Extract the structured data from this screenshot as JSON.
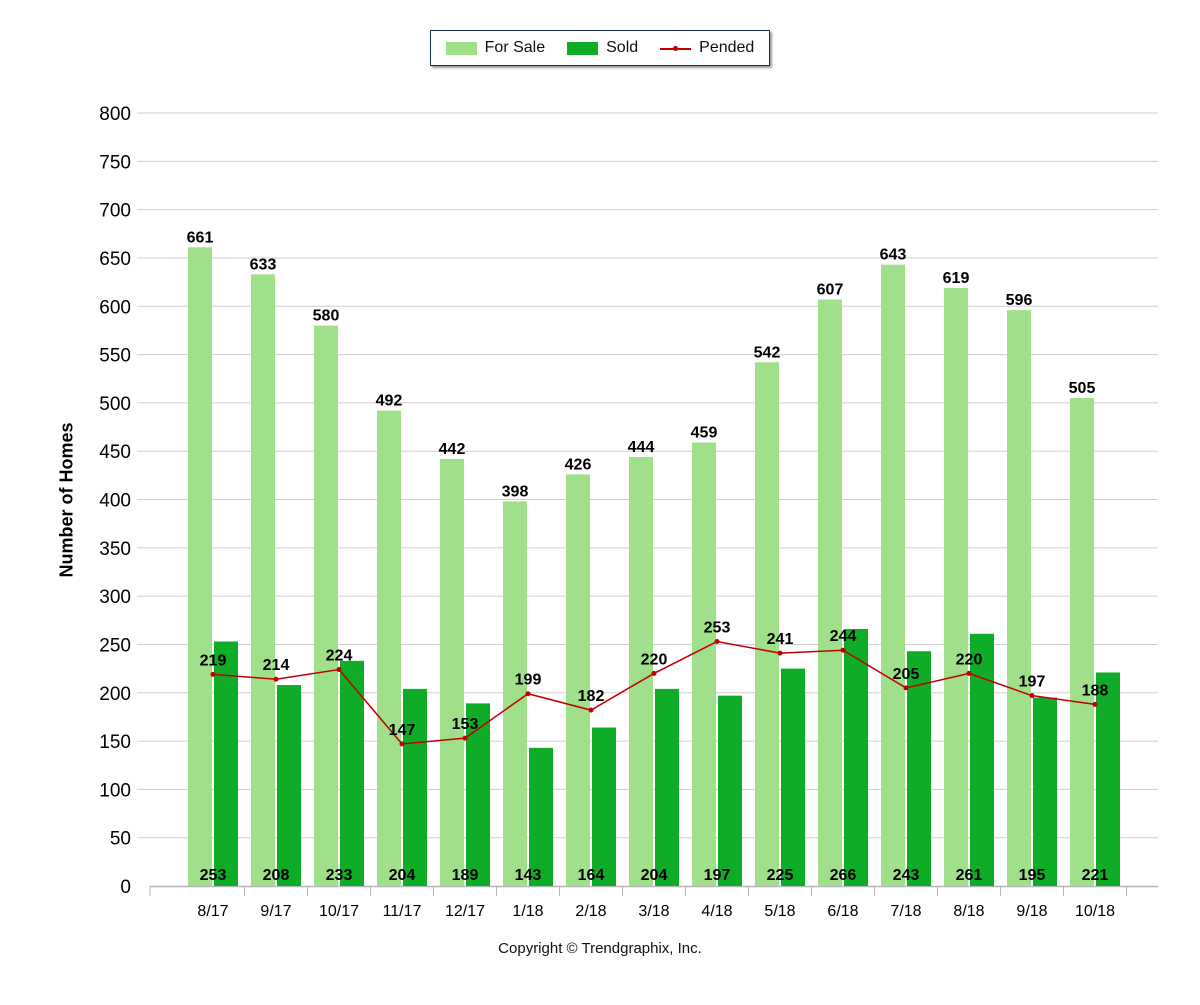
{
  "chart_data": {
    "type": "bar",
    "title": "",
    "xlabel": "",
    "ylabel": "Number of Homes",
    "ylim": [
      0,
      800
    ],
    "ytick_step": 50,
    "grid": true,
    "legend_position": "top-center",
    "categories": [
      "8/17",
      "9/17",
      "10/17",
      "11/17",
      "12/17",
      "1/18",
      "2/18",
      "3/18",
      "4/18",
      "5/18",
      "6/18",
      "7/18",
      "8/18",
      "9/18",
      "10/18"
    ],
    "series": [
      {
        "name": "For Sale",
        "kind": "bar",
        "color": "#a0e08a",
        "values": [
          661,
          633,
          580,
          492,
          442,
          398,
          426,
          444,
          459,
          542,
          607,
          643,
          619,
          596,
          505
        ]
      },
      {
        "name": "Sold",
        "kind": "bar",
        "color": "#0fad27",
        "values": [
          253,
          208,
          233,
          204,
          189,
          143,
          164,
          204,
          197,
          225,
          266,
          243,
          261,
          195,
          221
        ]
      },
      {
        "name": "Pended",
        "kind": "line",
        "color": "#c00000",
        "values": [
          219,
          214,
          224,
          147,
          153,
          199,
          182,
          220,
          253,
          241,
          244,
          205,
          220,
          197,
          188
        ]
      }
    ]
  },
  "footer": "Copyright © Trendgraphix, Inc."
}
